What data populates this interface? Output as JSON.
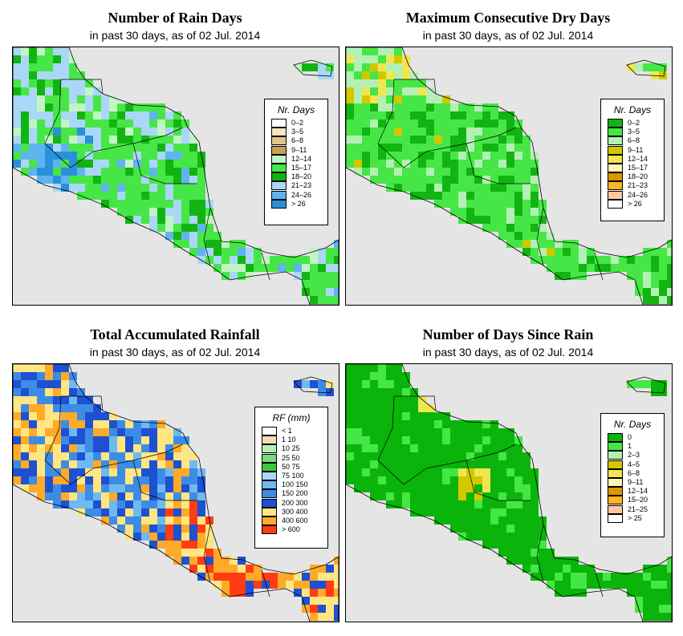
{
  "subtitle": "in past 30 days, as of  02 Jul. 2014",
  "panels": [
    {
      "title": "Number of Rain Days",
      "legend_title": "Nr. Days",
      "legend": [
        {
          "label": "0–2",
          "color": "#ffffff"
        },
        {
          "label": "3–5",
          "color": "#f5e6c4"
        },
        {
          "label": "6–8",
          "color": "#e0c48c"
        },
        {
          "label": "9–11",
          "color": "#c9a050"
        },
        {
          "label": "12–14",
          "color": "#c4f4c4"
        },
        {
          "label": "15–17",
          "color": "#46e646"
        },
        {
          "label": "18–20",
          "color": "#12b412"
        },
        {
          "label": "21–23",
          "color": "#aad7f7"
        },
        {
          "label": "24–26",
          "color": "#5fb4ee"
        },
        {
          "label": "> 26",
          "color": "#2a90dc"
        }
      ]
    },
    {
      "title": "Maximum Consecutive Dry Days",
      "legend_title": "Nr. Days",
      "legend": [
        {
          "label": "0–2",
          "color": "#12b412"
        },
        {
          "label": "3–5",
          "color": "#46e646"
        },
        {
          "label": "6–8",
          "color": "#b4f0b4"
        },
        {
          "label": "9–11",
          "color": "#d2c800"
        },
        {
          "label": "12–14",
          "color": "#f0e650"
        },
        {
          "label": "15–17",
          "color": "#fff5b4"
        },
        {
          "label": "18–20",
          "color": "#dc9600"
        },
        {
          "label": "21–23",
          "color": "#ffb428"
        },
        {
          "label": "24–26",
          "color": "#ffc8a0"
        },
        {
          "label": "> 26",
          "color": "#ffffff"
        }
      ]
    },
    {
      "title": "Total Accumulated Rainfall",
      "legend_title": "RF (mm)",
      "legend": [
        {
          "label": "< 1",
          "color": "#ffffff"
        },
        {
          "label": "1  10",
          "color": "#f5dcb4"
        },
        {
          "label": "10  25",
          "color": "#b4f0b4"
        },
        {
          "label": "25  50",
          "color": "#78dc78"
        },
        {
          "label": "50  75",
          "color": "#3cc83c"
        },
        {
          "label": "75  100",
          "color": "#aad7f7"
        },
        {
          "label": "100  150",
          "color": "#6eb9f0"
        },
        {
          "label": "150  200",
          "color": "#3c8ce6"
        },
        {
          "label": "200  300",
          "color": "#1e50d2"
        },
        {
          "label": "300  400",
          "color": "#ffe682"
        },
        {
          "label": "400  600",
          "color": "#ffaa28"
        },
        {
          "label": "> 600",
          "color": "#ff3c14"
        }
      ]
    },
    {
      "title": "Number of Days Since Rain",
      "legend_title": "Nr. Days",
      "legend": [
        {
          "label": "0",
          "color": "#0ab40a"
        },
        {
          "label": "1",
          "color": "#46e646"
        },
        {
          "label": "2–3",
          "color": "#b4f0b4"
        },
        {
          "label": "4–5",
          "color": "#d2c800"
        },
        {
          "label": "6–8",
          "color": "#f0e650"
        },
        {
          "label": "9–11",
          "color": "#fff5b4"
        },
        {
          "label": "12–14",
          "color": "#dc9600"
        },
        {
          "label": "15–20",
          "color": "#ffb428"
        },
        {
          "label": "21–25",
          "color": "#ffc8a0"
        },
        {
          "label": "> 25",
          "color": "#ffffff"
        }
      ]
    }
  ]
}
